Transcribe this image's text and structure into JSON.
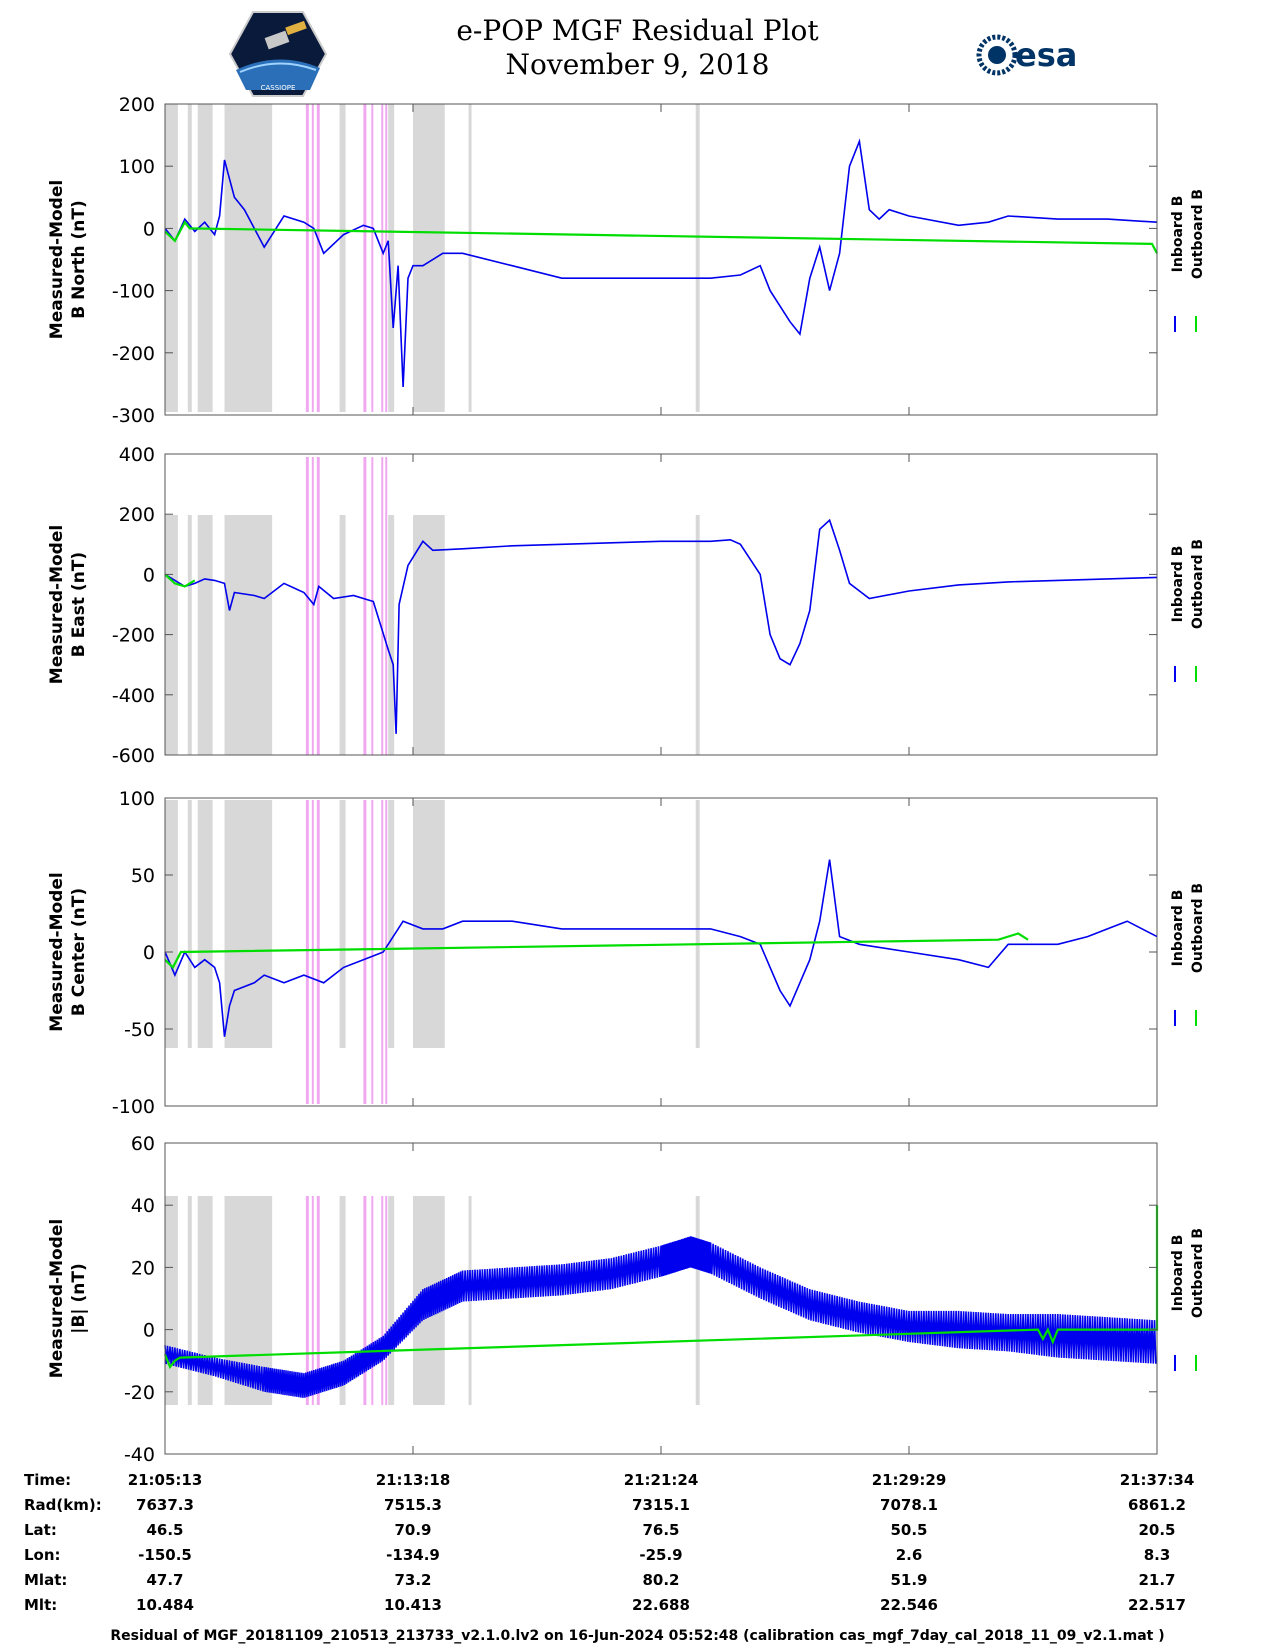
{
  "page": {
    "title_line1": "e-POP MGF Residual Plot",
    "title_line2": "November 9, 2018",
    "esa_text": "esa",
    "cassiope_text": "CASSIOPE",
    "footer": "Residual of MGF_20181109_210513_213733_v2.1.0.lv2 on 16-Jun-2024 05:52:48 (calibration cas_mgf_7day_cal_2018_11_09_v2.1.mat )"
  },
  "colors": {
    "inboard": "#0000ee",
    "outboard": "#00dd00",
    "gray_band": "#d8d8d8",
    "pink_band": "#f0a8f0"
  },
  "chart_data": [
    {
      "type": "line",
      "ylabel_line1": "Measured-Model",
      "ylabel_line2": "B North (nT)",
      "ylim": [
        -300,
        200
      ],
      "yticks": [
        -300,
        -200,
        -100,
        0,
        100,
        200
      ],
      "legend": [
        "Inboard B",
        "Outboard B"
      ],
      "series": [
        {
          "name": "Inboard B",
          "x": [
            0,
            0.01,
            0.02,
            0.03,
            0.04,
            0.05,
            0.055,
            0.06,
            0.07,
            0.08,
            0.09,
            0.1,
            0.12,
            0.14,
            0.15,
            0.16,
            0.18,
            0.2,
            0.21,
            0.22,
            0.225,
            0.23,
            0.235,
            0.24,
            0.245,
            0.25,
            0.26,
            0.28,
            0.3,
            0.35,
            0.4,
            0.45,
            0.5,
            0.55,
            0.58,
            0.6,
            0.61,
            0.63,
            0.64,
            0.65,
            0.66,
            0.67,
            0.68,
            0.69,
            0.7,
            0.71,
            0.72,
            0.73,
            0.75,
            0.8,
            0.83,
            0.85,
            0.9,
            0.95,
            1.0
          ],
          "y": [
            0,
            -20,
            15,
            -5,
            10,
            -10,
            20,
            110,
            50,
            30,
            0,
            -30,
            20,
            10,
            0,
            -40,
            -10,
            5,
            0,
            -40,
            -20,
            -160,
            -60,
            -255,
            -80,
            -60,
            -60,
            -40,
            -40,
            -60,
            -80,
            -80,
            -80,
            -80,
            -75,
            -60,
            -100,
            -150,
            -170,
            -80,
            -30,
            -100,
            -40,
            100,
            140,
            30,
            15,
            30,
            20,
            5,
            10,
            20,
            15,
            15,
            10
          ]
        },
        {
          "name": "Outboard B",
          "x": [
            0,
            0.01,
            0.02,
            0.025,
            0.995,
            1.0
          ],
          "y": [
            -5,
            -20,
            10,
            0,
            -25,
            -40
          ]
        }
      ],
      "gray_bands": [
        [
          0,
          0.013
        ],
        [
          0.023,
          0.027
        ],
        [
          0.033,
          0.048
        ],
        [
          0.06,
          0.108
        ],
        [
          0.176,
          0.182
        ],
        [
          0.225,
          0.231
        ],
        [
          0.25,
          0.282
        ],
        [
          0.306,
          0.309
        ],
        [
          0.535,
          0.539
        ]
      ],
      "pink_bands": [
        [
          0.142,
          0.145
        ],
        [
          0.148,
          0.15
        ],
        [
          0.153,
          0.156
        ],
        [
          0.2,
          0.203
        ],
        [
          0.208,
          0.21
        ],
        [
          0.218,
          0.22
        ],
        [
          0.222,
          0.224
        ]
      ]
    },
    {
      "type": "line",
      "ylabel_line1": "Measured-Model",
      "ylabel_line2": "B East (nT)",
      "ylim": [
        -600,
        400
      ],
      "yticks": [
        -600,
        -400,
        -200,
        0,
        200,
        400
      ],
      "legend": [
        "Inboard B",
        "Outboard B"
      ],
      "series": [
        {
          "name": "Inboard B",
          "x": [
            0,
            0.02,
            0.03,
            0.04,
            0.05,
            0.06,
            0.065,
            0.07,
            0.09,
            0.1,
            0.12,
            0.14,
            0.15,
            0.155,
            0.17,
            0.19,
            0.21,
            0.225,
            0.23,
            0.233,
            0.236,
            0.245,
            0.26,
            0.27,
            0.3,
            0.35,
            0.4,
            0.45,
            0.5,
            0.55,
            0.57,
            0.58,
            0.6,
            0.61,
            0.62,
            0.63,
            0.64,
            0.65,
            0.66,
            0.67,
            0.68,
            0.69,
            0.71,
            0.75,
            0.8,
            0.85,
            0.9,
            0.95,
            1.0
          ],
          "y": [
            0,
            -40,
            -30,
            -15,
            -20,
            -30,
            -120,
            -60,
            -70,
            -80,
            -30,
            -60,
            -100,
            -40,
            -80,
            -70,
            -90,
            -250,
            -300,
            -530,
            -100,
            30,
            110,
            80,
            85,
            95,
            100,
            105,
            110,
            110,
            115,
            100,
            0,
            -200,
            -280,
            -300,
            -230,
            -120,
            150,
            180,
            80,
            -30,
            -80,
            -55,
            -35,
            -25,
            -20,
            -15,
            -10
          ]
        },
        {
          "name": "Outboard B",
          "x": [
            0,
            0.01,
            0.02,
            0.03
          ],
          "y": [
            0,
            -30,
            -40,
            -20
          ]
        }
      ],
      "gray_bands": [
        [
          0,
          0.013
        ],
        [
          0.023,
          0.027
        ],
        [
          0.033,
          0.048
        ],
        [
          0.06,
          0.108
        ],
        [
          0.176,
          0.182
        ],
        [
          0.225,
          0.231
        ],
        [
          0.25,
          0.282
        ],
        [
          0.535,
          0.539
        ]
      ],
      "pink_bands": [
        [
          0.142,
          0.145
        ],
        [
          0.148,
          0.15
        ],
        [
          0.153,
          0.156
        ],
        [
          0.2,
          0.203
        ],
        [
          0.208,
          0.21
        ],
        [
          0.218,
          0.22
        ],
        [
          0.222,
          0.224
        ]
      ]
    },
    {
      "type": "line",
      "ylabel_line1": "Measured-Model",
      "ylabel_line2": "B Center (nT)",
      "ylim": [
        -100,
        100
      ],
      "yticks": [
        -100,
        -50,
        0,
        50
      ],
      "ytick_top_label": "100",
      "legend": [
        "Inboard B",
        "Outboard B"
      ],
      "series": [
        {
          "name": "Inboard B",
          "x": [
            0,
            0.01,
            0.02,
            0.03,
            0.04,
            0.05,
            0.055,
            0.06,
            0.065,
            0.07,
            0.09,
            0.1,
            0.12,
            0.14,
            0.16,
            0.18,
            0.2,
            0.22,
            0.23,
            0.24,
            0.26,
            0.28,
            0.3,
            0.35,
            0.4,
            0.45,
            0.5,
            0.55,
            0.58,
            0.6,
            0.61,
            0.62,
            0.63,
            0.64,
            0.65,
            0.66,
            0.67,
            0.68,
            0.7,
            0.75,
            0.8,
            0.83,
            0.85,
            0.88,
            0.9,
            0.93,
            0.95,
            0.97,
            1.0
          ],
          "y": [
            0,
            -15,
            0,
            -10,
            -5,
            -10,
            -20,
            -55,
            -35,
            -25,
            -20,
            -15,
            -20,
            -15,
            -20,
            -10,
            -5,
            0,
            10,
            20,
            15,
            15,
            20,
            20,
            15,
            15,
            15,
            15,
            10,
            5,
            -10,
            -25,
            -35,
            -20,
            -5,
            20,
            60,
            10,
            5,
            0,
            -5,
            -10,
            5,
            5,
            5,
            10,
            15,
            20,
            10
          ]
        },
        {
          "name": "Outboard B",
          "x": [
            0,
            0.008,
            0.016,
            0.84,
            0.86,
            0.87
          ],
          "y": [
            -5,
            -10,
            0,
            8,
            12,
            8
          ]
        }
      ],
      "gray_bands": [
        [
          0,
          0.013
        ],
        [
          0.023,
          0.027
        ],
        [
          0.033,
          0.048
        ],
        [
          0.06,
          0.108
        ],
        [
          0.176,
          0.182
        ],
        [
          0.225,
          0.231
        ],
        [
          0.25,
          0.282
        ],
        [
          0.535,
          0.539
        ]
      ],
      "pink_bands": [
        [
          0.142,
          0.145
        ],
        [
          0.148,
          0.15
        ],
        [
          0.153,
          0.156
        ],
        [
          0.2,
          0.203
        ],
        [
          0.208,
          0.21
        ],
        [
          0.218,
          0.22
        ],
        [
          0.222,
          0.224
        ]
      ]
    },
    {
      "type": "line",
      "ylabel_line1": "Measured-Model",
      "ylabel_line2": "|B| (nT)",
      "ylim": [
        -40,
        60
      ],
      "yticks": [
        -40,
        -20,
        0,
        20,
        40,
        60
      ],
      "legend": [
        "Inboard B",
        "Outboard B"
      ],
      "series": [
        {
          "name": "Inboard B",
          "x": [
            0,
            0.05,
            0.1,
            0.14,
            0.18,
            0.22,
            0.26,
            0.3,
            0.35,
            0.4,
            0.45,
            0.5,
            0.53,
            0.55,
            0.6,
            0.65,
            0.7,
            0.75,
            0.8,
            0.85,
            0.9,
            0.95,
            1.0
          ],
          "y": [
            -8,
            -12,
            -16,
            -18,
            -14,
            -6,
            8,
            14,
            15,
            16,
            18,
            22,
            25,
            23,
            15,
            8,
            4,
            1,
            0,
            -1,
            -2,
            -3,
            -4
          ],
          "amplitude": [
            3,
            3,
            4,
            4,
            4,
            4,
            5,
            5,
            5,
            5,
            5,
            5,
            5,
            5,
            5,
            5,
            5,
            5,
            6,
            6,
            7,
            7,
            7
          ]
        },
        {
          "name": "Outboard B",
          "x": [
            0,
            0.005,
            0.01,
            0.015,
            0.88,
            0.885,
            0.89,
            0.895,
            0.9,
            1.0,
            1.0
          ],
          "y": [
            -8,
            -12,
            -10,
            -9,
            0,
            -3,
            0,
            -4,
            0,
            0,
            40
          ]
        }
      ],
      "gray_bands": [
        [
          0,
          0.013
        ],
        [
          0.023,
          0.027
        ],
        [
          0.033,
          0.048
        ],
        [
          0.06,
          0.108
        ],
        [
          0.176,
          0.182
        ],
        [
          0.225,
          0.231
        ],
        [
          0.25,
          0.282
        ],
        [
          0.306,
          0.309
        ],
        [
          0.535,
          0.539
        ]
      ],
      "pink_bands": [
        [
          0.142,
          0.145
        ],
        [
          0.148,
          0.15
        ],
        [
          0.153,
          0.156
        ],
        [
          0.2,
          0.203
        ],
        [
          0.208,
          0.21
        ],
        [
          0.218,
          0.22
        ],
        [
          0.222,
          0.224
        ]
      ]
    }
  ],
  "ephemeris": {
    "row_labels": [
      "Time:",
      "Rad(km):",
      "Lat:",
      "Lon:",
      "Mlat:",
      "Mlt:"
    ],
    "columns": [
      [
        "21:05:13",
        "7637.3",
        "46.5",
        "-150.5",
        "47.7",
        "10.484"
      ],
      [
        "21:13:18",
        "7515.3",
        "70.9",
        "-134.9",
        "73.2",
        "10.413"
      ],
      [
        "21:21:24",
        "7315.1",
        "76.5",
        "-25.9",
        "80.2",
        "22.688"
      ],
      [
        "21:29:29",
        "7078.1",
        "50.5",
        "2.6",
        "51.9",
        "22.546"
      ],
      [
        "21:37:34",
        "6861.2",
        "20.5",
        "8.3",
        "21.7",
        "22.517"
      ]
    ]
  }
}
